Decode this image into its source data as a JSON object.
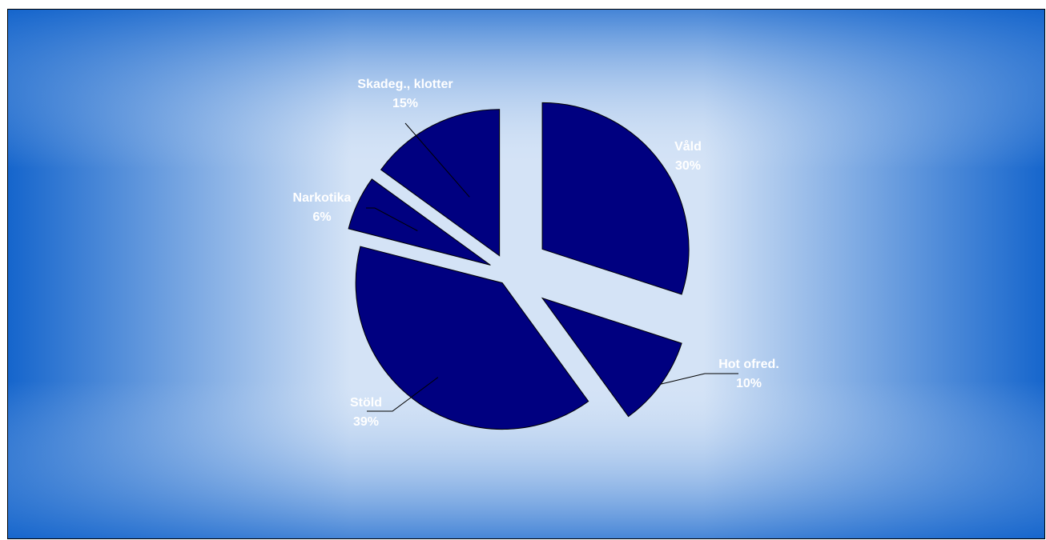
{
  "chart_data": {
    "type": "pie",
    "exploded": true,
    "title": "",
    "slices": [
      {
        "label": "Våld",
        "value": 30,
        "value_label": "30%"
      },
      {
        "label": "Hot ofred.",
        "value": 10,
        "value_label": "10%"
      },
      {
        "label": "Stöld",
        "value": 39,
        "value_label": "39%"
      },
      {
        "label": "Narkotika",
        "value": 6,
        "value_label": "6%"
      },
      {
        "label": "Skadeg., klotter",
        "value": 15,
        "value_label": "15%"
      }
    ],
    "slice_color": "#000080",
    "background_colors": {
      "edge": "#1565cc",
      "center": "#d4e3f6"
    },
    "legend": "none"
  }
}
